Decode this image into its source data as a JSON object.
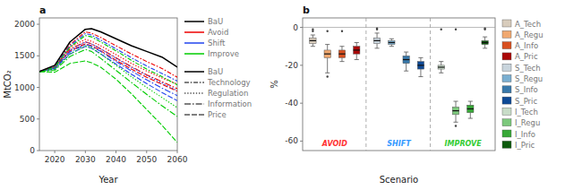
{
  "chart_data": [
    {
      "type": "line",
      "title": "a",
      "xlabel": "Year",
      "ylabel": "MtCO₂",
      "x": [
        2015,
        2020,
        2025,
        2030,
        2032,
        2035,
        2040,
        2045,
        2050,
        2055,
        2060
      ],
      "xlim": [
        2015,
        2060
      ],
      "xticks": [
        2020,
        2030,
        2040,
        2050,
        2060
      ],
      "ylim": [
        0,
        2100
      ],
      "yticks": [
        0,
        500,
        1000,
        1500,
        2000
      ],
      "grid": false,
      "legend_text_color": "#777777",
      "series": [
        {
          "color": "#000000",
          "line_style": "solid",
          "values": [
            1250,
            1350,
            1720,
            1920,
            1930,
            1880,
            1770,
            1660,
            1570,
            1480,
            1320
          ]
        },
        {
          "color": "#EE0000",
          "line_style": "dashdot",
          "values": [
            1250,
            1340,
            1680,
            1880,
            1860,
            1790,
            1660,
            1530,
            1410,
            1300,
            1160
          ]
        },
        {
          "color": "#EE0000",
          "line_style": "dotted",
          "values": [
            1250,
            1330,
            1640,
            1760,
            1730,
            1660,
            1520,
            1380,
            1260,
            1150,
            1050
          ]
        },
        {
          "color": "#EE0000",
          "line_style": "longdashdot",
          "values": [
            1250,
            1320,
            1610,
            1720,
            1690,
            1610,
            1470,
            1330,
            1200,
            1090,
            980
          ]
        },
        {
          "color": "#EE0000",
          "line_style": "dashed",
          "values": [
            1250,
            1310,
            1580,
            1690,
            1660,
            1580,
            1430,
            1290,
            1160,
            1050,
            940
          ]
        },
        {
          "color": "#2244EE",
          "line_style": "dashdot",
          "values": [
            1250,
            1330,
            1660,
            1850,
            1830,
            1750,
            1610,
            1470,
            1340,
            1220,
            1100
          ]
        },
        {
          "color": "#2244EE",
          "line_style": "dotted",
          "values": [
            1250,
            1310,
            1590,
            1720,
            1690,
            1610,
            1460,
            1320,
            1190,
            1070,
            950
          ]
        },
        {
          "color": "#2244EE",
          "line_style": "longdashdot",
          "values": [
            1250,
            1300,
            1560,
            1680,
            1650,
            1570,
            1410,
            1260,
            1120,
            990,
            870
          ]
        },
        {
          "color": "#2244EE",
          "line_style": "dashed",
          "values": [
            1250,
            1290,
            1530,
            1650,
            1620,
            1530,
            1370,
            1210,
            1060,
            920,
            790
          ]
        },
        {
          "color": "#00CC00",
          "line_style": "dashdot",
          "values": [
            1250,
            1320,
            1640,
            1820,
            1800,
            1720,
            1580,
            1430,
            1290,
            1170,
            1040
          ]
        },
        {
          "color": "#00CC00",
          "line_style": "dotted",
          "values": [
            1250,
            1290,
            1530,
            1660,
            1630,
            1530,
            1350,
            1170,
            1000,
            840,
            680
          ]
        },
        {
          "color": "#00CC00",
          "line_style": "longdashdot",
          "values": [
            1250,
            1270,
            1490,
            1600,
            1570,
            1460,
            1270,
            1080,
            890,
            710,
            540
          ]
        },
        {
          "color": "#00CC00",
          "line_style": "dashed",
          "values": [
            1250,
            1240,
            1380,
            1420,
            1390,
            1320,
            1130,
            900,
            650,
            400,
            130
          ]
        }
      ],
      "legends": [
        [
          {
            "label": "BaU",
            "color": "#000000",
            "line_style": "solid"
          },
          {
            "label": "Avoid",
            "color": "#EE0000",
            "line_style": "solid"
          },
          {
            "label": "Shift",
            "color": "#2244EE",
            "line_style": "solid"
          },
          {
            "label": "Improve",
            "color": "#00CC00",
            "line_style": "solid"
          }
        ],
        [
          {
            "label": "BaU",
            "color": "#000000",
            "line_style": "solid"
          },
          {
            "label": "Technology",
            "color": "#000000",
            "line_style": "dashdot"
          },
          {
            "label": "Regulation",
            "color": "#000000",
            "line_style": "dotted"
          },
          {
            "label": "Information",
            "color": "#000000",
            "line_style": "longdashdot"
          },
          {
            "label": "Price",
            "color": "#000000",
            "line_style": "dashed"
          }
        ]
      ]
    },
    {
      "type": "box",
      "title": "b",
      "xlabel": "Scenario",
      "ylabel": "%",
      "ylim": [
        -65,
        5
      ],
      "yticks": [
        0,
        -20,
        -40,
        -60
      ],
      "grid": false,
      "tick_labels": "y",
      "reference_lines": [
        0
      ],
      "legend_text_color": "#777777",
      "groups": [
        {
          "label": "AVOID",
          "color": "#FF3333",
          "boxes": [
            {
              "name": "A_Tech",
              "color": "#D8CCBC",
              "median": -7,
              "q1": -8.5,
              "q3": -5.5,
              "whisker_low": -10,
              "whisker_high": -4,
              "fliers": [
                -2,
                -1
              ]
            },
            {
              "name": "A_Regu",
              "color": "#F0A870",
              "median": -14,
              "q1": -16,
              "q3": -12,
              "whisker_low": -24,
              "whisker_high": -9,
              "fliers": [
                -2,
                -26
              ]
            },
            {
              "name": "A_Info",
              "color": "#D85020",
              "median": -14,
              "q1": -16,
              "q3": -12,
              "whisker_low": -18,
              "whisker_high": -10,
              "fliers": [
                -2
              ]
            },
            {
              "name": "A_Pric",
              "color": "#AA0808",
              "median": -12,
              "q1": -14,
              "q3": -10,
              "whisker_low": -17,
              "whisker_high": -8,
              "fliers": []
            }
          ]
        },
        {
          "label": "SHIFT",
          "color": "#3399FF",
          "boxes": [
            {
              "name": "S_Tech",
              "color": "#C8D4DC",
              "median": -7,
              "q1": -8.5,
              "q3": -5.5,
              "whisker_low": -11,
              "whisker_high": -3,
              "fliers": [
                -1,
                -0.5
              ]
            },
            {
              "name": "S_Regu",
              "color": "#7AAED0",
              "median": -8,
              "q1": -9,
              "q3": -7,
              "whisker_low": -10,
              "whisker_high": -6,
              "fliers": []
            },
            {
              "name": "S_Info",
              "color": "#3878AA",
              "median": -17,
              "q1": -19,
              "q3": -15,
              "whisker_low": -23,
              "whisker_high": -13,
              "fliers": []
            },
            {
              "name": "S_Pric",
              "color": "#0E4A96",
              "median": -20,
              "q1": -22,
              "q3": -18,
              "whisker_low": -26,
              "whisker_high": -16,
              "fliers": []
            }
          ]
        },
        {
          "label": "IMPROVE",
          "color": "#33CC33",
          "boxes": [
            {
              "name": "I_Tech",
              "color": "#C8DCC8",
              "median": -21,
              "q1": -22,
              "q3": -20,
              "whisker_low": -24,
              "whisker_high": -18,
              "fliers": [
                -1
              ]
            },
            {
              "name": "I_Regu",
              "color": "#7CC87C",
              "median": -44,
              "q1": -46,
              "q3": -42,
              "whisker_low": -50,
              "whisker_high": -39,
              "fliers": [
                -1,
                -52
              ]
            },
            {
              "name": "I_Info",
              "color": "#38A838",
              "median": -43,
              "q1": -45,
              "q3": -41,
              "whisker_low": -48,
              "whisker_high": -39,
              "fliers": []
            },
            {
              "name": "I_Pric",
              "color": "#0E5A0E",
              "median": -8,
              "q1": -9,
              "q3": -7,
              "whisker_low": -11,
              "whisker_high": -5,
              "fliers": [
                -1,
                -0.5
              ]
            }
          ]
        }
      ]
    }
  ]
}
